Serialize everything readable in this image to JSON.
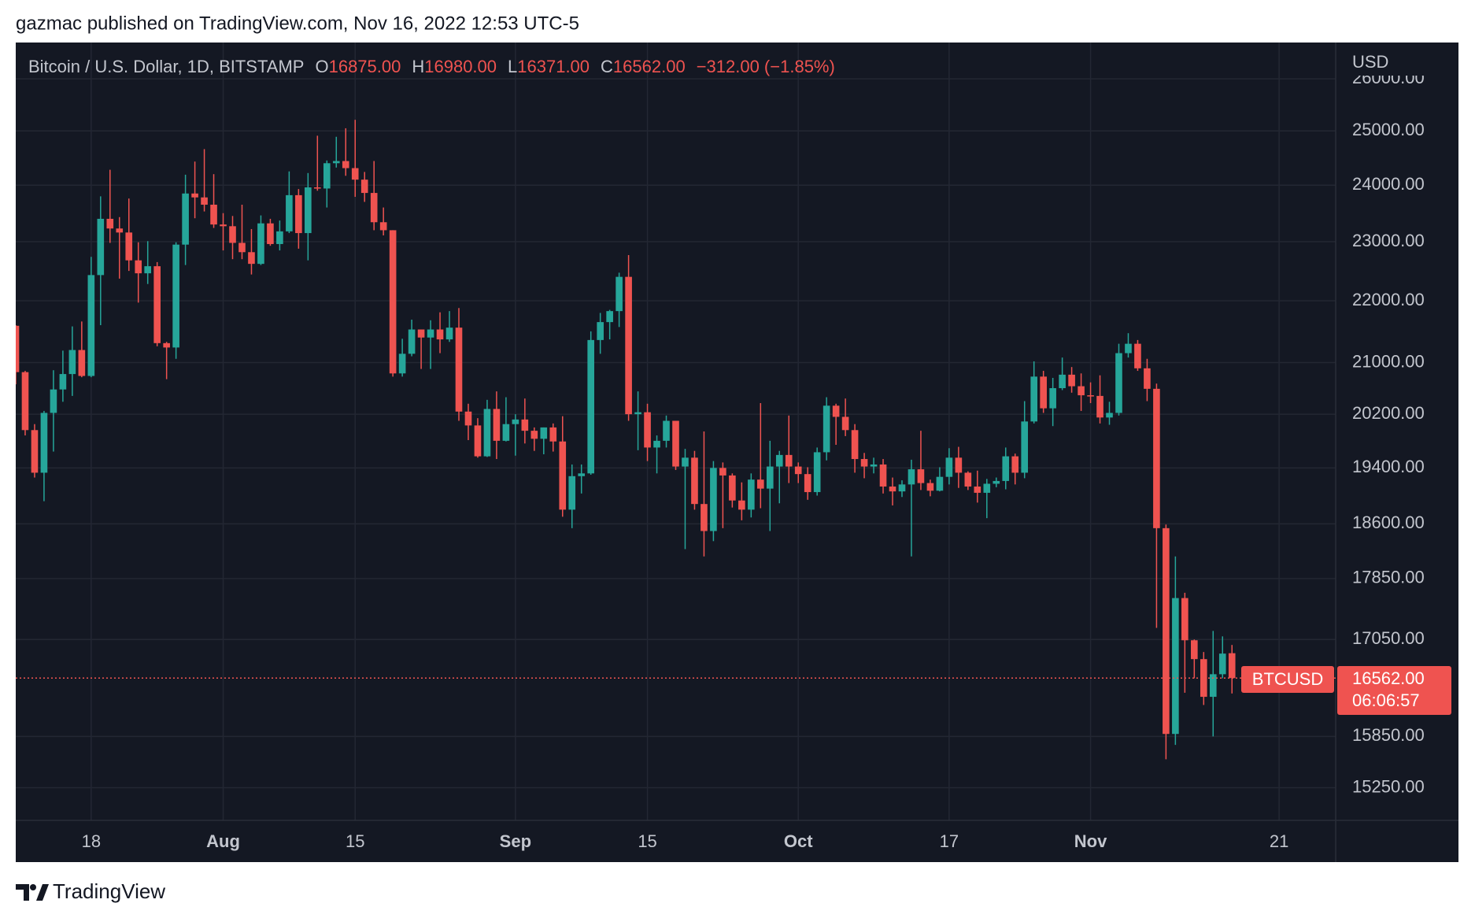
{
  "header": {
    "caption": "gazmac published on TradingView.com, Nov 16, 2022 12:53 UTC-5"
  },
  "footer": {
    "brand": "TradingView"
  },
  "chart_data": {
    "type": "candlestick",
    "legend": {
      "symbol": "Bitcoin / U.S. Dollar, 1D, BITSTAMP",
      "open": {
        "label": "O",
        "value": "16875.00"
      },
      "high": {
        "label": "H",
        "value": "16980.00"
      },
      "low": {
        "label": "L",
        "value": "16371.00"
      },
      "close": {
        "label": "C",
        "value": "16562.00"
      },
      "change": "−312.00 (−1.85%)"
    },
    "ylabel": "USD",
    "last_price": {
      "symbol": "BTCUSD",
      "label": "16562.00",
      "countdown": "06:06:57"
    },
    "up_color": "#26a69a",
    "down_color": "#ef5350",
    "log_scale": true,
    "grid": true,
    "xlim": [
      "Jul 10",
      "Nov 27"
    ],
    "xticks": [
      {
        "value": "Jul 18",
        "label": "18"
      },
      {
        "value": "Aug 1",
        "label": "Aug"
      },
      {
        "value": "Aug 15",
        "label": "15"
      },
      {
        "value": "Sep 1",
        "label": "Sep"
      },
      {
        "value": "Sep 15",
        "label": "15"
      },
      {
        "value": "Oct 1",
        "label": "Oct"
      },
      {
        "value": "Oct 17",
        "label": "17"
      },
      {
        "value": "Nov 1",
        "label": "Nov"
      },
      {
        "value": "Nov 21",
        "label": "21"
      }
    ],
    "ylim": [
      14880,
      26720
    ],
    "yticks": [
      {
        "value": 26000,
        "label": "26000.00"
      },
      {
        "value": 25000,
        "label": "25000.00"
      },
      {
        "value": 24000,
        "label": "24000.00"
      },
      {
        "value": 23000,
        "label": "23000.00"
      },
      {
        "value": 22000,
        "label": "22000.00"
      },
      {
        "value": 21000,
        "label": "21000.00"
      },
      {
        "value": 20200,
        "label": "20200.00"
      },
      {
        "value": 19400,
        "label": "19400.00"
      },
      {
        "value": 18600,
        "label": "18600.00"
      },
      {
        "value": 17850,
        "label": "17850.00"
      },
      {
        "value": 17050,
        "label": "17050.00"
      },
      {
        "value": 15850,
        "label": "15850.00"
      },
      {
        "value": 15250,
        "label": "15250.00"
      }
    ],
    "x": [
      "Jul 10",
      "Jul 11",
      "Jul 12",
      "Jul 13",
      "Jul 14",
      "Jul 15",
      "Jul 16",
      "Jul 17",
      "Jul 18",
      "Jul 19",
      "Jul 20",
      "Jul 21",
      "Jul 22",
      "Jul 23",
      "Jul 24",
      "Jul 25",
      "Jul 26",
      "Jul 27",
      "Jul 28",
      "Jul 29",
      "Jul 30",
      "Jul 31",
      "Aug 1",
      "Aug 2",
      "Aug 3",
      "Aug 4",
      "Aug 5",
      "Aug 6",
      "Aug 7",
      "Aug 8",
      "Aug 9",
      "Aug 10",
      "Aug 11",
      "Aug 12",
      "Aug 13",
      "Aug 14",
      "Aug 15",
      "Aug 16",
      "Aug 17",
      "Aug 18",
      "Aug 19",
      "Aug 20",
      "Aug 21",
      "Aug 22",
      "Aug 23",
      "Aug 24",
      "Aug 25",
      "Aug 26",
      "Aug 27",
      "Aug 28",
      "Aug 29",
      "Aug 30",
      "Aug 31",
      "Sep 1",
      "Sep 2",
      "Sep 3",
      "Sep 4",
      "Sep 5",
      "Sep 6",
      "Sep 7",
      "Sep 8",
      "Sep 9",
      "Sep 10",
      "Sep 11",
      "Sep 12",
      "Sep 13",
      "Sep 14",
      "Sep 15",
      "Sep 16",
      "Sep 17",
      "Sep 18",
      "Sep 19",
      "Sep 20",
      "Sep 21",
      "Sep 22",
      "Sep 23",
      "Sep 24",
      "Sep 25",
      "Sep 26",
      "Sep 27",
      "Sep 28",
      "Sep 29",
      "Sep 30",
      "Oct 1",
      "Oct 2",
      "Oct 3",
      "Oct 4",
      "Oct 5",
      "Oct 6",
      "Oct 7",
      "Oct 8",
      "Oct 9",
      "Oct 10",
      "Oct 11",
      "Oct 12",
      "Oct 13",
      "Oct 14",
      "Oct 15",
      "Oct 16",
      "Oct 17",
      "Oct 18",
      "Oct 19",
      "Oct 20",
      "Oct 21",
      "Oct 22",
      "Oct 23",
      "Oct 24",
      "Oct 25",
      "Oct 26",
      "Oct 27",
      "Oct 28",
      "Oct 29",
      "Oct 30",
      "Oct 31",
      "Nov 1",
      "Nov 2",
      "Nov 3",
      "Nov 4",
      "Nov 5",
      "Nov 6",
      "Nov 7",
      "Nov 8",
      "Nov 9",
      "Nov 10",
      "Nov 11",
      "Nov 12",
      "Nov 13",
      "Nov 14",
      "Nov 15",
      "Nov 16"
    ],
    "open": [
      21590,
      20850,
      19960,
      19330,
      20220,
      20580,
      20820,
      21200,
      20790,
      22430,
      23400,
      23230,
      23160,
      22680,
      22460,
      22580,
      21310,
      21240,
      22950,
      23850,
      23780,
      23650,
      23300,
      23270,
      22980,
      22820,
      22620,
      23320,
      22960,
      23180,
      23820,
      23150,
      23960,
      23940,
      24400,
      24440,
      24310,
      24100,
      23860,
      23340,
      23200,
      20830,
      21140,
      21530,
      21400,
      21530,
      21370,
      21560,
      20240,
      20030,
      19570,
      20280,
      19800,
      20050,
      20120,
      19950,
      19830,
      20000,
      19790,
      18800,
      19280,
      19320,
      21360,
      21650,
      21830,
      22400,
      20200,
      20230,
      19700,
      19800,
      20100,
      19420,
      19550,
      18880,
      18500,
      19400,
      19290,
      18930,
      18800,
      19230,
      19100,
      19420,
      19590,
      19420,
      19310,
      19050,
      19630,
      20330,
      20160,
      19960,
      19530,
      19420,
      19450,
      19130,
      19060,
      19160,
      19380,
      19180,
      19070,
      19270,
      19550,
      19330,
      19130,
      19040,
      19170,
      19210,
      19570,
      19330,
      20090,
      20780,
      20290,
      20600,
      20810,
      20630,
      20490,
      20480,
      20150,
      20220,
      21150,
      21300,
      20910,
      20590,
      18540,
      15880,
      17590,
      17040,
      16800,
      16330,
      16610,
      16875
    ],
    "high": [
      21600,
      20870,
      20050,
      20250,
      20880,
      21190,
      21580,
      21660,
      22740,
      23800,
      24280,
      23430,
      23760,
      22990,
      23010,
      22650,
      21330,
      22990,
      24190,
      24430,
      24660,
      24200,
      23500,
      23450,
      23650,
      23220,
      23460,
      23400,
      23370,
      24250,
      23930,
      24220,
      24910,
      24450,
      24890,
      25050,
      25210,
      24240,
      24440,
      23600,
      23200,
      21380,
      21690,
      21530,
      21680,
      21810,
      21830,
      21880,
      20360,
      20140,
      20420,
      20550,
      20460,
      20200,
      20440,
      20000,
      20000,
      20060,
      20170,
      19450,
      19450,
      21500,
      21800,
      21850,
      22470,
      22770,
      20550,
      20360,
      19880,
      20180,
      20100,
      19680,
      19650,
      19940,
      19500,
      19480,
      19320,
      19190,
      19320,
      20370,
      19800,
      19650,
      20180,
      19480,
      19410,
      19700,
      20460,
      20360,
      20440,
      20050,
      19620,
      19550,
      19530,
      19260,
      19220,
      19520,
      19950,
      19230,
      19410,
      19690,
      19710,
      19350,
      19360,
      19240,
      19260,
      19700,
      19610,
      20400,
      21020,
      20870,
      20760,
      21080,
      20930,
      20830,
      20690,
      20800,
      20390,
      21300,
      21470,
      21360,
      21060,
      20670,
      18590,
      18150,
      17660,
      17050,
      16890,
      17160,
      17090,
      16980
    ],
    "low": [
      20660,
      19880,
      19260,
      18920,
      19640,
      20390,
      20480,
      20770,
      20770,
      21600,
      22980,
      22370,
      22500,
      21970,
      22280,
      21260,
      20740,
      21060,
      22600,
      23410,
      23530,
      23240,
      22850,
      22700,
      22700,
      22440,
      22600,
      22930,
      22850,
      23150,
      22880,
      22680,
      23900,
      23600,
      24320,
      24170,
      23790,
      23700,
      23200,
      23110,
      20780,
      20780,
      21100,
      20900,
      20900,
      21150,
      21330,
      20100,
      19810,
      19550,
      19560,
      19530,
      19790,
      19580,
      19760,
      19650,
      19600,
      19640,
      18700,
      18540,
      19030,
      19300,
      21140,
      21370,
      21570,
      20100,
      19660,
      19500,
      19320,
      19700,
      19370,
      18250,
      18800,
      18150,
      18360,
      18540,
      18830,
      18650,
      18690,
      18820,
      18500,
      18890,
      19180,
      19180,
      18940,
      19000,
      19510,
      19740,
      19870,
      19330,
      19250,
      19320,
      19030,
      18860,
      18980,
      18150,
      19080,
      18990,
      19060,
      19160,
      19110,
      19080,
      18900,
      18680,
      19120,
      19090,
      19160,
      19250,
      20060,
      20220,
      20020,
      20570,
      20530,
      20250,
      20370,
      20060,
      20040,
      20180,
      21080,
      20870,
      20400,
      17200,
      15580,
      15750,
      16380,
      16560,
      16230,
      15850,
      16560,
      16371
    ],
    "close": [
      20850,
      19960,
      19330,
      20220,
      20580,
      20820,
      21200,
      20790,
      22430,
      23400,
      23230,
      23160,
      22680,
      22460,
      22580,
      21310,
      21240,
      22950,
      23850,
      23780,
      23650,
      23300,
      23270,
      22980,
      22820,
      22620,
      23320,
      22960,
      23180,
      23820,
      23150,
      23960,
      23940,
      24400,
      24440,
      24310,
      24100,
      23860,
      23340,
      23200,
      20830,
      21140,
      21530,
      21400,
      21530,
      21370,
      21560,
      20240,
      20030,
      19570,
      20280,
      19800,
      20050,
      20120,
      19950,
      19830,
      20000,
      19790,
      18800,
      19280,
      19320,
      21360,
      21650,
      21830,
      22400,
      20200,
      20230,
      19700,
      19800,
      20100,
      19420,
      19550,
      18880,
      18500,
      19400,
      19290,
      18930,
      18800,
      19230,
      19100,
      19420,
      19590,
      19420,
      19310,
      19050,
      19630,
      20330,
      20160,
      19960,
      19530,
      19420,
      19450,
      19130,
      19060,
      19160,
      19380,
      19180,
      19070,
      19270,
      19550,
      19330,
      19130,
      19040,
      19170,
      19210,
      19570,
      19330,
      20090,
      20780,
      20290,
      20600,
      20810,
      20630,
      20490,
      20480,
      20150,
      20220,
      21150,
      21300,
      20910,
      20590,
      18540,
      15880,
      17590,
      17040,
      16800,
      16330,
      16610,
      16870,
      16562
    ]
  }
}
